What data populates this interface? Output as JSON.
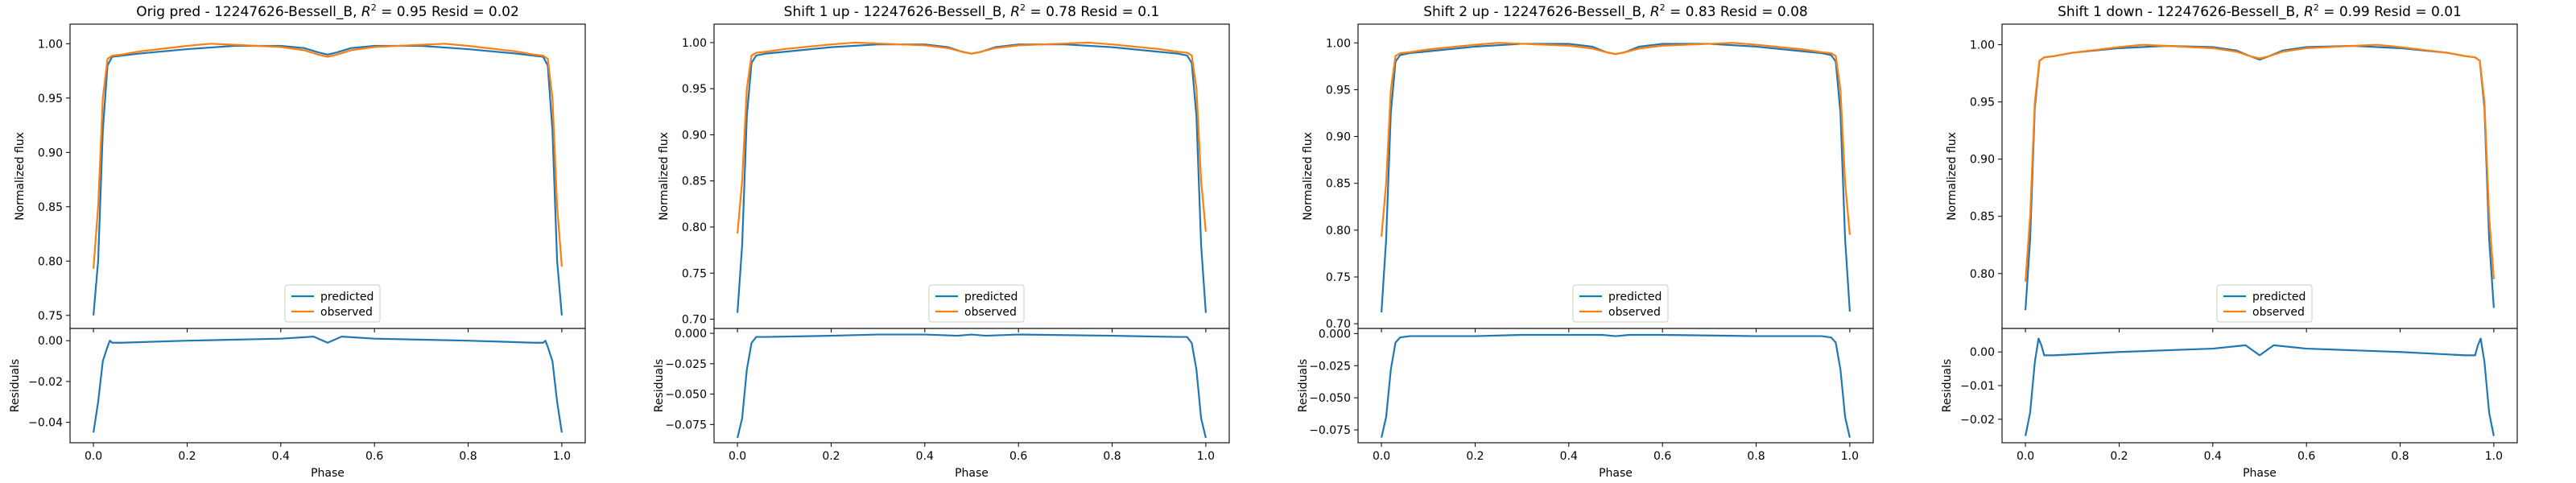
{
  "chart_data": [
    {
      "type": "line",
      "title": "Orig pred - 12247626-Bessell_B, $R^2 = 0.95$ Resid = 0.02",
      "title_pre": "Orig pred - 12247626-Bessell_B, ",
      "title_r2": "R",
      "title_r2_exp": "2",
      "title_post": " = 0.95 Resid = 0.02",
      "xlabel": "Phase",
      "ylabel": "Normalized flux",
      "resid_ylabel": "Residuals",
      "xlim": [
        -0.05,
        1.05
      ],
      "ylim": [
        0.738,
        1.018
      ],
      "resid_ylim": [
        -0.05,
        0.006
      ],
      "xticks": [
        0.0,
        0.2,
        0.4,
        0.6,
        0.8,
        1.0
      ],
      "xtick_labels": [
        "0.0",
        "0.2",
        "0.4",
        "0.6",
        "0.8",
        "1.0"
      ],
      "yticks": [
        0.75,
        0.8,
        0.85,
        0.9,
        0.95,
        1.0
      ],
      "ytick_labels": [
        "0.75",
        "0.80",
        "0.85",
        "0.90",
        "0.95",
        "1.00"
      ],
      "resid_yticks": [
        -0.04,
        -0.02,
        0.0
      ],
      "resid_ytick_labels": [
        "−0.04",
        "−0.02",
        "0.00"
      ],
      "legend": [
        "predicted",
        "observed"
      ],
      "legend_position": "lower center",
      "series": [
        {
          "name": "predicted",
          "color": "#1f77b4",
          "x": [
            0.0,
            0.01,
            0.02,
            0.03,
            0.04,
            0.06,
            0.1,
            0.2,
            0.3,
            0.4,
            0.45,
            0.48,
            0.5,
            0.52,
            0.55,
            0.6,
            0.7,
            0.8,
            0.9,
            0.94,
            0.96,
            0.97,
            0.98,
            0.99,
            1.0
          ],
          "y": [
            0.75,
            0.8,
            0.92,
            0.98,
            0.988,
            0.989,
            0.991,
            0.995,
            0.998,
            0.998,
            0.996,
            0.992,
            0.99,
            0.992,
            0.996,
            0.998,
            0.998,
            0.995,
            0.991,
            0.989,
            0.988,
            0.98,
            0.92,
            0.8,
            0.75
          ]
        },
        {
          "name": "observed",
          "color": "#ff7f0e",
          "x": [
            0.0,
            0.01,
            0.02,
            0.03,
            0.04,
            0.06,
            0.1,
            0.2,
            0.25,
            0.3,
            0.4,
            0.45,
            0.48,
            0.5,
            0.52,
            0.55,
            0.6,
            0.7,
            0.75,
            0.8,
            0.9,
            0.94,
            0.96,
            0.97,
            0.98,
            0.99,
            1.0
          ],
          "y": [
            0.793,
            0.85,
            0.95,
            0.986,
            0.989,
            0.99,
            0.993,
            0.998,
            1.0,
            0.999,
            0.997,
            0.994,
            0.99,
            0.988,
            0.99,
            0.994,
            0.997,
            0.999,
            1.0,
            0.998,
            0.993,
            0.99,
            0.989,
            0.986,
            0.95,
            0.85,
            0.795
          ]
        }
      ],
      "residuals": {
        "color": "#1f77b4",
        "x": [
          0.0,
          0.01,
          0.02,
          0.03,
          0.035,
          0.04,
          0.06,
          0.2,
          0.4,
          0.47,
          0.5,
          0.53,
          0.6,
          0.8,
          0.94,
          0.96,
          0.965,
          0.97,
          0.98,
          0.99,
          1.0
        ],
        "y": [
          -0.045,
          -0.03,
          -0.01,
          -0.003,
          0.0,
          -0.001,
          -0.001,
          0.0,
          0.001,
          0.002,
          -0.001,
          0.002,
          0.001,
          0.0,
          -0.001,
          -0.001,
          0.0,
          -0.003,
          -0.01,
          -0.03,
          -0.045
        ]
      }
    },
    {
      "type": "line",
      "title": "Shift 1 up - 12247626-Bessell_B, $R^2 = 0.78$ Resid = 0.1",
      "title_pre": "Shift 1 up - 12247626-Bessell_B, ",
      "title_r2": "R",
      "title_r2_exp": "2",
      "title_post": " = 0.78 Resid = 0.1",
      "xlabel": "Phase",
      "ylabel": "Normalized flux",
      "resid_ylabel": "Residuals",
      "xlim": [
        -0.05,
        1.05
      ],
      "ylim": [
        0.69,
        1.02
      ],
      "resid_ylim": [
        -0.09,
        0.004
      ],
      "xticks": [
        0.0,
        0.2,
        0.4,
        0.6,
        0.8,
        1.0
      ],
      "xtick_labels": [
        "0.0",
        "0.2",
        "0.4",
        "0.6",
        "0.8",
        "1.0"
      ],
      "yticks": [
        0.7,
        0.75,
        0.8,
        0.85,
        0.9,
        0.95,
        1.0
      ],
      "ytick_labels": [
        "0.70",
        "0.75",
        "0.80",
        "0.85",
        "0.90",
        "0.95",
        "1.00"
      ],
      "resid_yticks": [
        -0.075,
        -0.05,
        -0.025,
        0.0
      ],
      "resid_ytick_labels": [
        "−0.075",
        "−0.050",
        "−0.025",
        "0.000"
      ],
      "legend": [
        "predicted",
        "observed"
      ],
      "legend_position": "lower center",
      "series": [
        {
          "name": "predicted",
          "color": "#1f77b4",
          "x": [
            0.0,
            0.01,
            0.02,
            0.03,
            0.04,
            0.06,
            0.1,
            0.2,
            0.3,
            0.4,
            0.45,
            0.48,
            0.5,
            0.52,
            0.55,
            0.6,
            0.7,
            0.8,
            0.9,
            0.94,
            0.96,
            0.97,
            0.98,
            0.99,
            1.0
          ],
          "y": [
            0.707,
            0.78,
            0.92,
            0.978,
            0.986,
            0.988,
            0.99,
            0.995,
            0.998,
            0.998,
            0.995,
            0.99,
            0.988,
            0.99,
            0.995,
            0.998,
            0.998,
            0.995,
            0.99,
            0.988,
            0.986,
            0.978,
            0.92,
            0.78,
            0.707
          ]
        },
        {
          "name": "observed",
          "color": "#ff7f0e",
          "x": [
            0.0,
            0.01,
            0.02,
            0.03,
            0.04,
            0.06,
            0.1,
            0.2,
            0.25,
            0.3,
            0.4,
            0.45,
            0.48,
            0.5,
            0.52,
            0.55,
            0.6,
            0.7,
            0.75,
            0.8,
            0.9,
            0.94,
            0.96,
            0.97,
            0.98,
            0.99,
            1.0
          ],
          "y": [
            0.793,
            0.85,
            0.95,
            0.986,
            0.989,
            0.99,
            0.993,
            0.998,
            1.0,
            0.999,
            0.997,
            0.994,
            0.99,
            0.988,
            0.99,
            0.994,
            0.997,
            0.999,
            1.0,
            0.998,
            0.993,
            0.99,
            0.989,
            0.986,
            0.95,
            0.85,
            0.795
          ]
        }
      ],
      "residuals": {
        "color": "#1f77b4",
        "x": [
          0.0,
          0.01,
          0.02,
          0.03,
          0.04,
          0.06,
          0.2,
          0.3,
          0.4,
          0.47,
          0.5,
          0.53,
          0.6,
          0.8,
          0.94,
          0.96,
          0.97,
          0.98,
          0.99,
          1.0
        ],
        "y": [
          -0.086,
          -0.07,
          -0.03,
          -0.008,
          -0.003,
          -0.003,
          -0.002,
          -0.001,
          -0.001,
          -0.002,
          -0.001,
          -0.002,
          -0.001,
          -0.002,
          -0.003,
          -0.003,
          -0.008,
          -0.03,
          -0.07,
          -0.086
        ]
      }
    },
    {
      "type": "line",
      "title": "Shift 2 up - 12247626-Bessell_B, $R^2 = 0.83$ Resid = 0.08",
      "title_pre": "Shift 2 up - 12247626-Bessell_B, ",
      "title_r2": "R",
      "title_r2_exp": "2",
      "title_post": " = 0.83 Resid = 0.08",
      "xlabel": "Phase",
      "ylabel": "Normalized flux",
      "resid_ylabel": "Residuals",
      "xlim": [
        -0.05,
        1.05
      ],
      "ylim": [
        0.695,
        1.02
      ],
      "resid_ylim": [
        -0.085,
        0.004
      ],
      "xticks": [
        0.0,
        0.2,
        0.4,
        0.6,
        0.8,
        1.0
      ],
      "xtick_labels": [
        "0.0",
        "0.2",
        "0.4",
        "0.6",
        "0.8",
        "1.0"
      ],
      "yticks": [
        0.7,
        0.75,
        0.8,
        0.85,
        0.9,
        0.95,
        1.0
      ],
      "ytick_labels": [
        "0.70",
        "0.75",
        "0.80",
        "0.85",
        "0.90",
        "0.95",
        "1.00"
      ],
      "resid_yticks": [
        -0.075,
        -0.05,
        -0.025,
        0.0
      ],
      "resid_ytick_labels": [
        "−0.075",
        "−0.050",
        "−0.025",
        "0.000"
      ],
      "legend": [
        "predicted",
        "observed"
      ],
      "legend_position": "lower center",
      "series": [
        {
          "name": "predicted",
          "color": "#1f77b4",
          "x": [
            0.0,
            0.01,
            0.02,
            0.03,
            0.04,
            0.06,
            0.1,
            0.2,
            0.3,
            0.4,
            0.45,
            0.48,
            0.5,
            0.52,
            0.55,
            0.6,
            0.7,
            0.8,
            0.9,
            0.94,
            0.96,
            0.97,
            0.98,
            0.99,
            1.0
          ],
          "y": [
            0.712,
            0.79,
            0.925,
            0.98,
            0.987,
            0.989,
            0.991,
            0.996,
            0.999,
            0.999,
            0.996,
            0.99,
            0.988,
            0.99,
            0.996,
            0.999,
            0.999,
            0.996,
            0.991,
            0.989,
            0.987,
            0.98,
            0.925,
            0.79,
            0.713
          ]
        },
        {
          "name": "observed",
          "color": "#ff7f0e",
          "x": [
            0.0,
            0.01,
            0.02,
            0.03,
            0.04,
            0.06,
            0.1,
            0.2,
            0.25,
            0.3,
            0.4,
            0.45,
            0.48,
            0.5,
            0.52,
            0.55,
            0.6,
            0.7,
            0.75,
            0.8,
            0.9,
            0.94,
            0.96,
            0.97,
            0.98,
            0.99,
            1.0
          ],
          "y": [
            0.793,
            0.85,
            0.95,
            0.986,
            0.989,
            0.99,
            0.993,
            0.998,
            1.0,
            0.999,
            0.997,
            0.994,
            0.99,
            0.988,
            0.99,
            0.994,
            0.997,
            0.999,
            1.0,
            0.998,
            0.993,
            0.99,
            0.989,
            0.986,
            0.95,
            0.85,
            0.795
          ]
        }
      ],
      "residuals": {
        "color": "#1f77b4",
        "x": [
          0.0,
          0.01,
          0.02,
          0.03,
          0.04,
          0.06,
          0.2,
          0.3,
          0.4,
          0.47,
          0.5,
          0.53,
          0.6,
          0.8,
          0.94,
          0.96,
          0.97,
          0.98,
          0.99,
          1.0
        ],
        "y": [
          -0.081,
          -0.065,
          -0.028,
          -0.007,
          -0.003,
          -0.002,
          -0.002,
          -0.001,
          -0.001,
          -0.001,
          -0.002,
          -0.001,
          -0.001,
          -0.002,
          -0.002,
          -0.003,
          -0.007,
          -0.028,
          -0.065,
          -0.081
        ]
      }
    },
    {
      "type": "line",
      "title": "Shift 1 down - 12247626-Bessell_B, $R^2 = 0.99$ Resid = 0.01",
      "title_pre": "Shift 1 down - 12247626-Bessell_B, ",
      "title_r2": "R",
      "title_r2_exp": "2",
      "title_post": " = 0.99 Resid = 0.01",
      "xlabel": "Phase",
      "ylabel": "Normalized flux",
      "resid_ylabel": "Residuals",
      "xlim": [
        -0.05,
        1.05
      ],
      "ylim": [
        0.752,
        1.018
      ],
      "resid_ylim": [
        -0.027,
        0.007
      ],
      "xticks": [
        0.0,
        0.2,
        0.4,
        0.6,
        0.8,
        1.0
      ],
      "xtick_labels": [
        "0.0",
        "0.2",
        "0.4",
        "0.6",
        "0.8",
        "1.0"
      ],
      "yticks": [
        0.8,
        0.85,
        0.9,
        0.95,
        1.0
      ],
      "ytick_labels": [
        "0.80",
        "0.85",
        "0.90",
        "0.95",
        "1.00"
      ],
      "resid_yticks": [
        -0.02,
        -0.01,
        0.0
      ],
      "resid_ytick_labels": [
        "−0.02",
        "−0.01",
        "0.00"
      ],
      "legend": [
        "predicted",
        "observed"
      ],
      "legend_position": "lower center",
      "series": [
        {
          "name": "predicted",
          "color": "#1f77b4",
          "x": [
            0.0,
            0.01,
            0.02,
            0.03,
            0.04,
            0.06,
            0.1,
            0.2,
            0.3,
            0.4,
            0.45,
            0.48,
            0.5,
            0.52,
            0.55,
            0.6,
            0.7,
            0.8,
            0.9,
            0.94,
            0.96,
            0.97,
            0.98,
            0.99,
            1.0
          ],
          "y": [
            0.768,
            0.83,
            0.945,
            0.986,
            0.989,
            0.99,
            0.993,
            0.997,
            0.999,
            0.998,
            0.995,
            0.99,
            0.987,
            0.99,
            0.995,
            0.998,
            0.999,
            0.997,
            0.993,
            0.99,
            0.989,
            0.986,
            0.945,
            0.83,
            0.77
          ]
        },
        {
          "name": "observed",
          "color": "#ff7f0e",
          "x": [
            0.0,
            0.01,
            0.02,
            0.03,
            0.04,
            0.06,
            0.1,
            0.2,
            0.25,
            0.3,
            0.4,
            0.45,
            0.48,
            0.5,
            0.52,
            0.55,
            0.6,
            0.7,
            0.75,
            0.8,
            0.9,
            0.94,
            0.96,
            0.97,
            0.98,
            0.99,
            1.0
          ],
          "y": [
            0.793,
            0.85,
            0.95,
            0.986,
            0.989,
            0.99,
            0.993,
            0.998,
            1.0,
            0.999,
            0.997,
            0.994,
            0.99,
            0.988,
            0.99,
            0.994,
            0.997,
            0.999,
            1.0,
            0.998,
            0.993,
            0.99,
            0.989,
            0.986,
            0.95,
            0.85,
            0.795
          ]
        }
      ],
      "residuals": {
        "color": "#1f77b4",
        "x": [
          0.0,
          0.01,
          0.02,
          0.028,
          0.034,
          0.04,
          0.06,
          0.2,
          0.4,
          0.47,
          0.5,
          0.53,
          0.6,
          0.8,
          0.94,
          0.96,
          0.966,
          0.972,
          0.98,
          0.99,
          1.0
        ],
        "y": [
          -0.025,
          -0.018,
          -0.003,
          0.004,
          0.002,
          -0.001,
          -0.001,
          0.0,
          0.001,
          0.002,
          -0.001,
          0.002,
          0.001,
          0.0,
          -0.001,
          -0.001,
          0.002,
          0.004,
          -0.003,
          -0.018,
          -0.025
        ]
      }
    }
  ]
}
